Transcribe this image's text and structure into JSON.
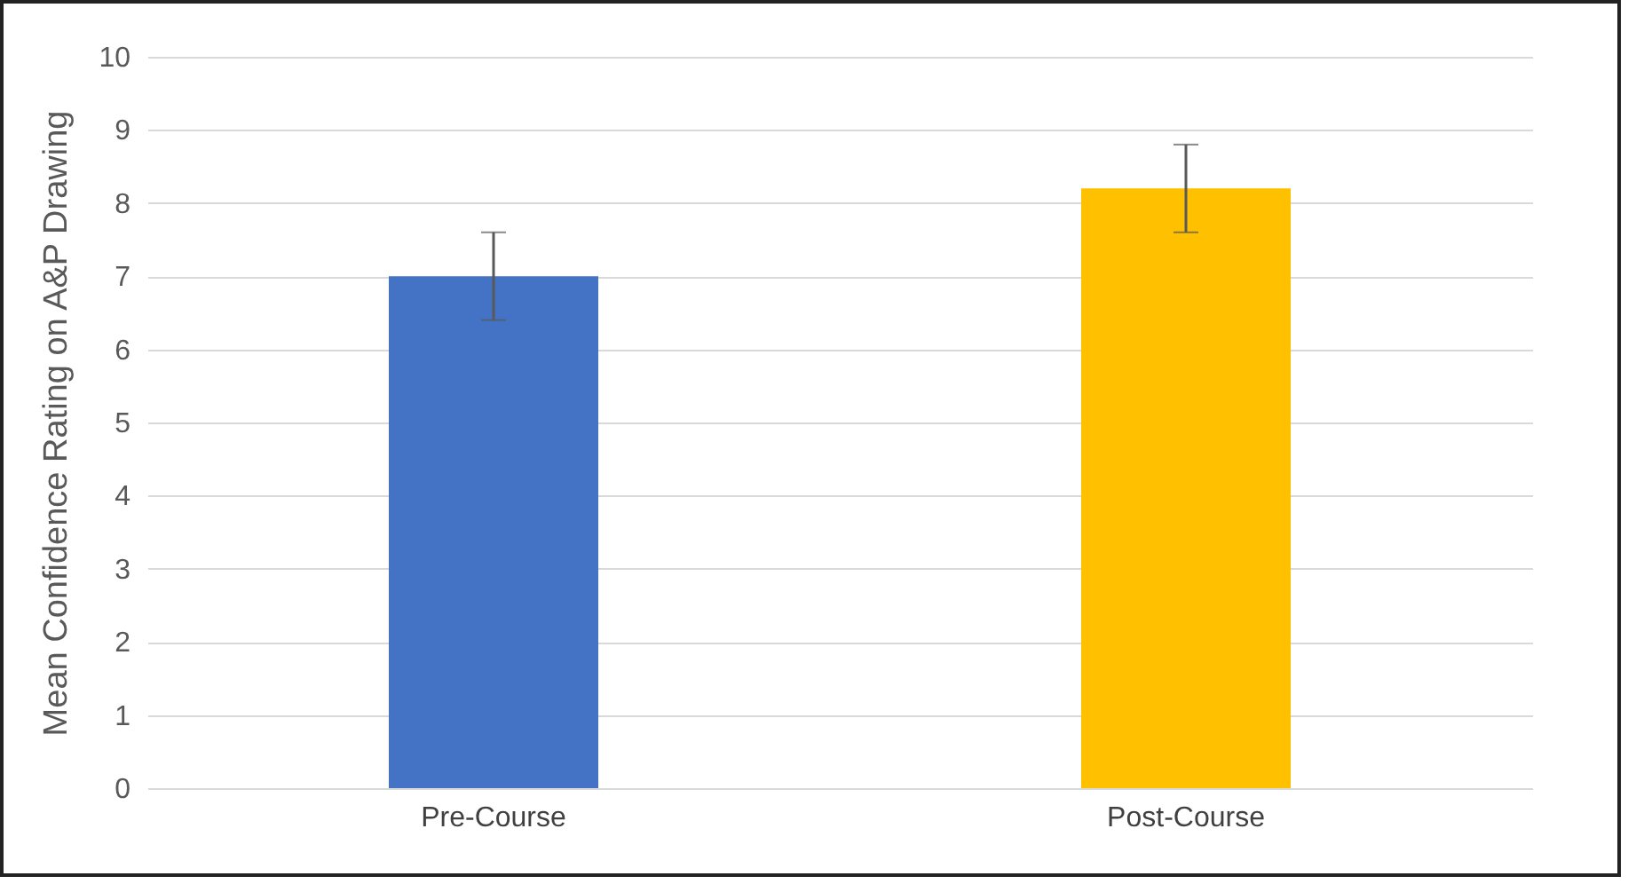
{
  "chart_data": {
    "type": "bar",
    "ylabel": "Mean Confidence Rating on A&P Drawing",
    "categories": [
      "Pre-Course",
      "Post-Course"
    ],
    "values": [
      7.0,
      8.2
    ],
    "colors": [
      "#4472c4",
      "#ffc000"
    ],
    "errors": [
      0.6,
      0.6
    ],
    "ylim": [
      0,
      10
    ],
    "yticks": [
      0,
      1,
      2,
      3,
      4,
      5,
      6,
      7,
      8,
      9,
      10
    ],
    "grid": "y"
  }
}
